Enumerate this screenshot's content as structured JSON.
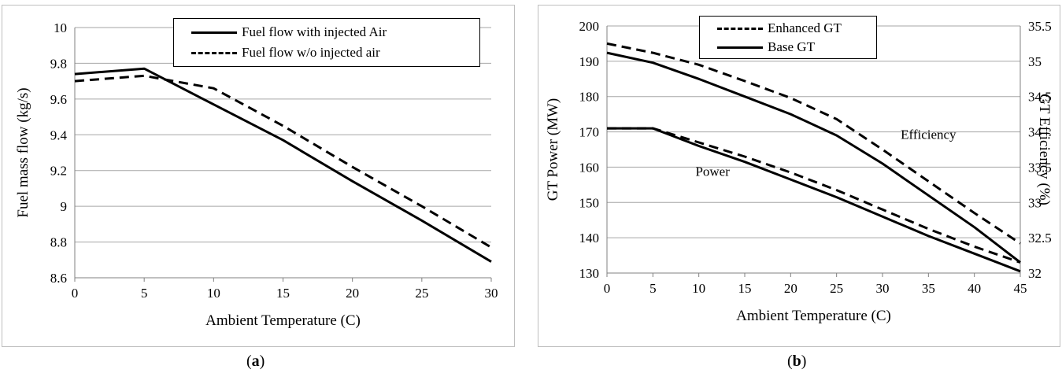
{
  "captions": {
    "a_label": "a",
    "b_label": "b"
  },
  "chart_data": [
    {
      "type": "line",
      "title": "",
      "xlabel": "Ambient Temperature (C)",
      "ylabel": "Fuel mass flow (kg/s)",
      "xlim": [
        0,
        30
      ],
      "ylim": [
        8.6,
        10
      ],
      "x_ticks": [
        "0",
        "5",
        "10",
        "15",
        "20",
        "25",
        "30"
      ],
      "y_ticks": [
        "8.6",
        "8.8",
        "9",
        "9.2",
        "9.4",
        "9.6",
        "9.8",
        "10"
      ],
      "grid": "horizontal",
      "legend_position": "top-right",
      "series": [
        {
          "name": "Fuel flow with injected Air",
          "style": "solid",
          "x": [
            0,
            5,
            10,
            15,
            20,
            25,
            30
          ],
          "values": [
            9.74,
            9.77,
            9.57,
            9.37,
            9.14,
            8.92,
            8.69
          ]
        },
        {
          "name": "Fuel flow w/o injected air",
          "style": "dashed",
          "x": [
            0,
            5,
            10,
            15,
            20,
            25,
            30
          ],
          "values": [
            9.7,
            9.73,
            9.66,
            9.45,
            9.22,
            9.0,
            8.77
          ]
        }
      ]
    },
    {
      "type": "line",
      "title": "",
      "xlabel": "Ambient Temperature (C)",
      "ylabel": "GT Power (MW)",
      "y2label": "GT Efficiency (%)",
      "xlim": [
        0,
        45
      ],
      "ylim": [
        130,
        200
      ],
      "y2lim": [
        32,
        35.5
      ],
      "x_ticks": [
        "0",
        "5",
        "10",
        "15",
        "20",
        "25",
        "30",
        "35",
        "40",
        "45"
      ],
      "y_ticks": [
        "130",
        "140",
        "150",
        "160",
        "170",
        "180",
        "190",
        "200"
      ],
      "y2_ticks": [
        "32",
        "32.5",
        "33",
        "33.5",
        "34",
        "34.5",
        "35",
        "35.5"
      ],
      "grid": "horizontal",
      "legend_position": "top-center",
      "legend": [
        {
          "name": "Enhanced GT",
          "style": "dashed"
        },
        {
          "name": "Base GT",
          "style": "solid"
        }
      ],
      "annotations": [
        {
          "text": "Efficiency",
          "at_x": 35,
          "at_y2": 33.9
        },
        {
          "text": "Power",
          "at_x": 11.5,
          "at_y": 157.5
        }
      ],
      "series": [
        {
          "group": "Enhanced GT",
          "quantity": "Efficiency",
          "axis": "right",
          "style": "dashed",
          "x": [
            0,
            5,
            10,
            15,
            20,
            25,
            30,
            35,
            40,
            45
          ],
          "values": [
            35.25,
            35.12,
            34.95,
            34.72,
            34.48,
            34.18,
            33.75,
            33.3,
            32.85,
            32.42
          ]
        },
        {
          "group": "Base GT",
          "quantity": "Efficiency",
          "axis": "right",
          "style": "solid",
          "x": [
            0,
            5,
            10,
            15,
            20,
            25,
            30,
            35,
            40,
            45
          ],
          "values": [
            35.12,
            34.98,
            34.75,
            34.5,
            34.25,
            33.95,
            33.55,
            33.1,
            32.65,
            32.15
          ]
        },
        {
          "group": "Enhanced GT",
          "quantity": "Power",
          "axis": "left",
          "style": "dashed",
          "x": [
            0,
            5,
            10,
            15,
            20,
            25,
            30,
            35,
            40,
            45
          ],
          "values": [
            171,
            171,
            167,
            163,
            158.5,
            153.5,
            148,
            142.5,
            137.5,
            133
          ]
        },
        {
          "group": "Base GT",
          "quantity": "Power",
          "axis": "left",
          "style": "solid",
          "x": [
            0,
            5,
            10,
            15,
            20,
            25,
            30,
            35,
            40,
            45
          ],
          "values": [
            171,
            171,
            166,
            161.5,
            156.5,
            151.5,
            146,
            140.5,
            135.5,
            130.5
          ]
        }
      ]
    }
  ]
}
